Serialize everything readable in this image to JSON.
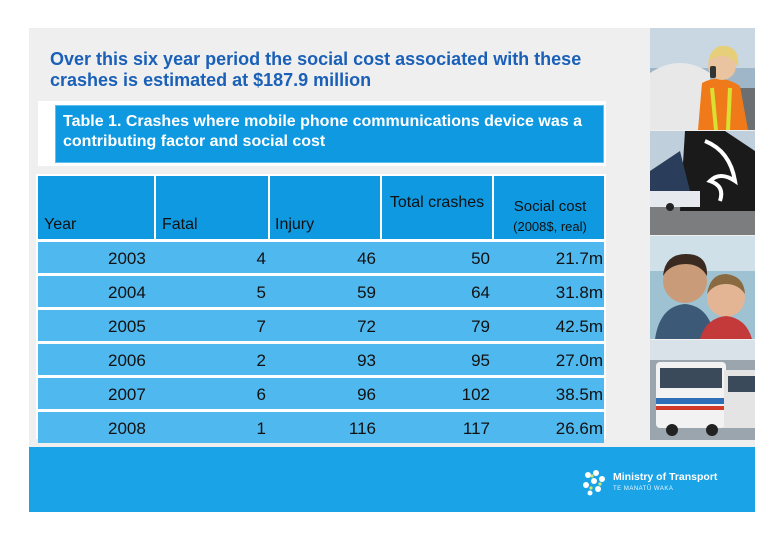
{
  "headline": "Over this six year period the social cost associated with these crashes is estimated at $187.9 million",
  "caption": "Table 1. Crashes where mobile phone communications device was a contributing factor and social cost",
  "table": {
    "headers": {
      "year": "Year",
      "fatal": "Fatal",
      "injury": "Injury",
      "total": "Total crashes",
      "social_cost": "Social cost",
      "social_cost_sub": "(2008$, real)"
    },
    "rows": [
      {
        "year": "2003",
        "fatal": "4",
        "injury": "46",
        "total": "50",
        "social_cost": "21.7m"
      },
      {
        "year": "2004",
        "fatal": "5",
        "injury": "59",
        "total": "64",
        "social_cost": "31.8m"
      },
      {
        "year": "2005",
        "fatal": "7",
        "injury": "72",
        "total": "79",
        "social_cost": "42.5m"
      },
      {
        "year": "2006",
        "fatal": "2",
        "injury": "93",
        "total": "95",
        "social_cost": "27.0m"
      },
      {
        "year": "2007",
        "fatal": "6",
        "injury": "96",
        "total": "102",
        "social_cost": "38.5m"
      },
      {
        "year": "2008",
        "fatal": "1",
        "injury": "116",
        "total": "117",
        "social_cost": "26.6m"
      }
    ]
  },
  "logo": {
    "name": "Ministry of Transport",
    "subtitle": "TE MANATŪ WAKA"
  },
  "colors": {
    "headline": "#1a60b8",
    "header_blue": "#0f99e1",
    "row_blue": "#4fb8ee",
    "footer": "#1aa3e6"
  }
}
